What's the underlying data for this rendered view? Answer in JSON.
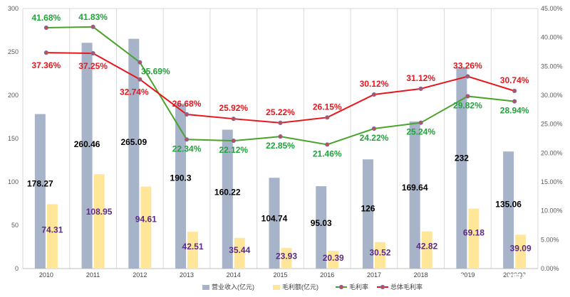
{
  "chart_data": {
    "type": "bar",
    "categories": [
      "2010",
      "2011",
      "2012",
      "2013",
      "2014",
      "2015",
      "2016",
      "2017",
      "2018",
      "2019",
      "2020Q3"
    ],
    "ylim": [
      0,
      300
    ],
    "y_ticks": [
      0,
      50,
      100,
      150,
      200,
      250,
      300
    ],
    "y2lim": [
      0,
      45
    ],
    "y2_ticks": [
      "0.00%",
      "5.00%",
      "10.00%",
      "15.00%",
      "20.00%",
      "25.00%",
      "30.00%",
      "35.00%",
      "40.00%",
      "45.00%"
    ],
    "grid": "vertical",
    "legend_position": "bottom",
    "series": [
      {
        "name": "营业收入(亿元)",
        "kind": "bar",
        "axis": "left",
        "color": "#a7b3c9",
        "values": [
          178.27,
          260.46,
          265.09,
          190.3,
          160.22,
          104.74,
          95.03,
          126,
          169.64,
          232,
          135.06
        ],
        "labels": [
          "178.27",
          "260.46",
          "265.09",
          "190.3",
          "160.22",
          "104.74",
          "95.03",
          "126",
          "169.64",
          "232",
          "135.06"
        ]
      },
      {
        "name": "毛利额(亿元)",
        "kind": "bar",
        "axis": "left",
        "color": "#ffe699",
        "values": [
          74.31,
          108.95,
          94.61,
          42.51,
          35.44,
          23.93,
          20.39,
          30.52,
          42.82,
          69.18,
          39.09
        ],
        "labels": [
          "74.31",
          "108.95",
          "94.61",
          "42.51",
          "35.44",
          "23.93",
          "20.39",
          "30.52",
          "42.82",
          "69.18",
          "39.09"
        ]
      },
      {
        "name": "毛利率",
        "kind": "line",
        "axis": "right",
        "color": "#4aa32a",
        "values": [
          41.68,
          41.83,
          35.69,
          22.34,
          22.12,
          22.85,
          21.46,
          24.22,
          25.24,
          29.82,
          28.94
        ],
        "labels": [
          "41.68%",
          "41.83%",
          "35.69%",
          "22.34%",
          "22.12%",
          "22.85%",
          "21.46%",
          "24.22%",
          "25.24%",
          "29.82%",
          "28.94%"
        ]
      },
      {
        "name": "总体毛利率",
        "kind": "line",
        "axis": "right",
        "color": "#e8161c",
        "values": [
          37.36,
          37.25,
          32.74,
          26.68,
          25.92,
          25.22,
          26.15,
          30.12,
          31.12,
          33.26,
          30.74
        ],
        "labels": [
          "37.36%",
          "37.25%",
          "32.74%",
          "26.68%",
          "25.92%",
          "25.22%",
          "26.15%",
          "30.12%",
          "31.12%",
          "33.26%",
          "30.74%"
        ]
      }
    ]
  },
  "watermark": "雪球：撒大猩猩"
}
